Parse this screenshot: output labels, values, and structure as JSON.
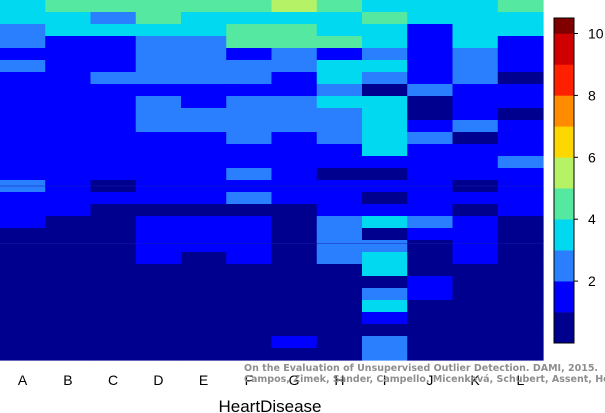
{
  "chart_data": {
    "type": "heatmap",
    "title": "",
    "xlabel": "HeartDisease",
    "ylabel": "",
    "categories": [
      "A",
      "B",
      "C",
      "D",
      "E",
      "F",
      "G",
      "H",
      "I",
      "J",
      "K",
      "L"
    ],
    "n_rows": 30,
    "colorbar": {
      "range": [
        0,
        10.5
      ],
      "ticks": [
        2,
        4,
        6,
        8,
        10
      ],
      "colors": [
        "#00008F",
        "#0000FF",
        "#2A7FFF",
        "#00D9F0",
        "#55E8A0",
        "#B5F265",
        "#FFD700",
        "#FF8C00",
        "#FF2000",
        "#D00000",
        "#800000"
      ]
    },
    "columns": [
      [
        3,
        3,
        2,
        2,
        1,
        2,
        1,
        1,
        1,
        1,
        1,
        1,
        1,
        1,
        1,
        2,
        1,
        1,
        1,
        0,
        0,
        0,
        0,
        0,
        0,
        0,
        0,
        0,
        0,
        0
      ],
      [
        4,
        3,
        3,
        1,
        1,
        1,
        1,
        1,
        1,
        1,
        1,
        1,
        1,
        1,
        1,
        1,
        1,
        1,
        0,
        0,
        0,
        0,
        0,
        0,
        0,
        0,
        0,
        0,
        0,
        0
      ],
      [
        4,
        2,
        3,
        1,
        1,
        1,
        2,
        1,
        1,
        1,
        1,
        1,
        1,
        1,
        1,
        0,
        1,
        0,
        0,
        0,
        0,
        0,
        0,
        0,
        0,
        0,
        0,
        0,
        0,
        0
      ],
      [
        4,
        4,
        3,
        2,
        2,
        2,
        2,
        1,
        2,
        2,
        2,
        1,
        1,
        1,
        1,
        1,
        1,
        0,
        1,
        1,
        1,
        1,
        0,
        0,
        0,
        0,
        0,
        0,
        0,
        0
      ],
      [
        4,
        3,
        3,
        2,
        2,
        2,
        2,
        1,
        1,
        2,
        2,
        1,
        1,
        1,
        1,
        1,
        1,
        0,
        1,
        1,
        1,
        0,
        0,
        0,
        0,
        0,
        0,
        0,
        0,
        0
      ],
      [
        4,
        3,
        4,
        4,
        1,
        2,
        2,
        1,
        2,
        2,
        2,
        2,
        1,
        1,
        2,
        1,
        2,
        0,
        1,
        1,
        1,
        1,
        0,
        0,
        0,
        0,
        0,
        0,
        0,
        0
      ],
      [
        5,
        3,
        4,
        4,
        2,
        2,
        1,
        1,
        2,
        2,
        2,
        1,
        1,
        1,
        1,
        1,
        1,
        0,
        0,
        0,
        0,
        0,
        0,
        0,
        0,
        0,
        0,
        0,
        1,
        0
      ],
      [
        4,
        3,
        3,
        4,
        1,
        3,
        3,
        2,
        3,
        2,
        2,
        2,
        1,
        1,
        0,
        1,
        1,
        1,
        2,
        2,
        2,
        2,
        0,
        0,
        0,
        0,
        0,
        0,
        0,
        0
      ],
      [
        3,
        4,
        3,
        3,
        2,
        3,
        2,
        0,
        3,
        3,
        3,
        3,
        3,
        1,
        0,
        1,
        0,
        1,
        3,
        0,
        2,
        3,
        3,
        0,
        2,
        3,
        1,
        0,
        2,
        2
      ],
      [
        3,
        3,
        1,
        1,
        1,
        1,
        1,
        2,
        0,
        0,
        1,
        2,
        1,
        1,
        1,
        1,
        1,
        1,
        2,
        1,
        0,
        0,
        0,
        1,
        1,
        0,
        0,
        0,
        0,
        0
      ],
      [
        3,
        3,
        3,
        3,
        2,
        2,
        2,
        1,
        1,
        1,
        2,
        0,
        1,
        1,
        1,
        0,
        1,
        0,
        1,
        1,
        1,
        1,
        0,
        0,
        0,
        0,
        0,
        0,
        0,
        0
      ],
      [
        4,
        3,
        3,
        1,
        1,
        1,
        0,
        1,
        1,
        0,
        1,
        1,
        1,
        2,
        1,
        1,
        1,
        1,
        0,
        0,
        0,
        0,
        0,
        0,
        0,
        0,
        0,
        0,
        0,
        0
      ]
    ]
  },
  "credit": {
    "line1": "On the Evaluation of Unsupervised Outlier Detection. DAMI, 2015.",
    "line2": "Campos, Zimek, Sander, Campello, Micenková, Schubert, Assent, Houle"
  }
}
